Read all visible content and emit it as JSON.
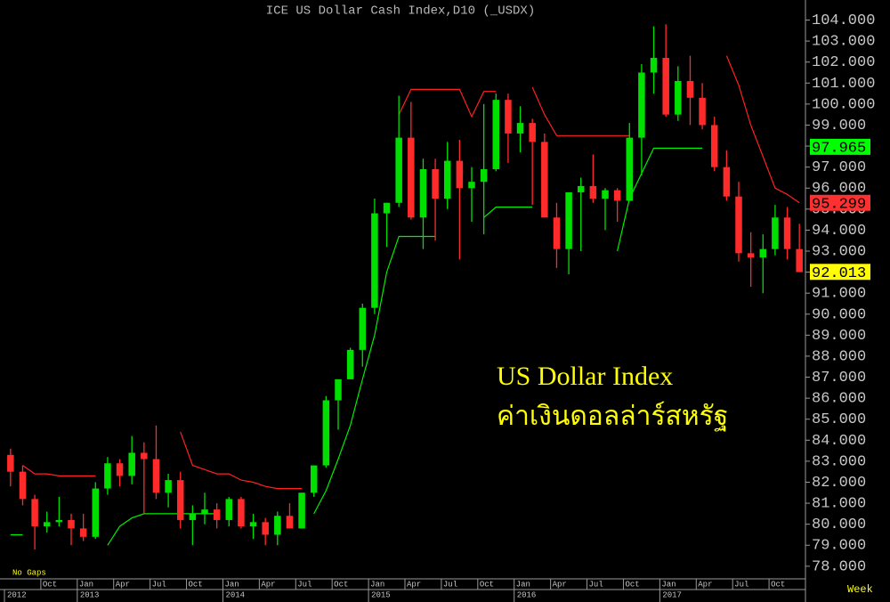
{
  "chart_data": {
    "type": "candlestick",
    "title": "ICE US Dollar Cash Index,D10 (_USDX)",
    "annotations": [
      "US Dollar Index",
      "ค่าเงินดอลล่าร์สหรัฐ"
    ],
    "corner_left": "No Gaps",
    "corner_right": "Week",
    "up_color": "#00e000",
    "down_color": "#ff2a2a",
    "x": [
      "2012-07",
      "2012-08",
      "2012-09",
      "2012-10",
      "2012-11",
      "2012-12",
      "2013-01",
      "2013-02",
      "2013-03",
      "2013-04",
      "2013-05",
      "2013-06",
      "2013-07",
      "2013-08",
      "2013-09",
      "2013-10",
      "2013-11",
      "2013-12",
      "2014-01",
      "2014-02",
      "2014-03",
      "2014-04",
      "2014-05",
      "2014-06",
      "2014-07",
      "2014-08",
      "2014-09",
      "2014-10",
      "2014-11",
      "2014-12",
      "2015-01",
      "2015-02",
      "2015-03",
      "2015-04",
      "2015-05",
      "2015-06",
      "2015-07",
      "2015-08",
      "2015-09",
      "2015-10",
      "2015-11",
      "2015-12",
      "2016-01",
      "2016-02",
      "2016-03",
      "2016-04",
      "2016-05",
      "2016-06",
      "2016-07",
      "2016-08",
      "2016-09",
      "2016-10",
      "2016-11",
      "2016-12",
      "2017-01",
      "2017-02",
      "2017-03",
      "2017-04",
      "2017-05",
      "2017-06",
      "2017-07",
      "2017-08",
      "2017-09",
      "2017-10",
      "2017-11",
      "2017-12"
    ],
    "open": [
      83.3,
      82.5,
      81.2,
      79.9,
      80.1,
      80.2,
      79.8,
      79.4,
      81.7,
      82.9,
      82.3,
      83.4,
      83.1,
      81.5,
      82.1,
      80.2,
      80.5,
      80.7,
      80.2,
      81.2,
      79.9,
      80.1,
      79.5,
      80.4,
      79.8,
      81.5,
      82.8,
      85.9,
      86.9,
      88.3,
      90.3,
      94.8,
      95.3,
      98.4,
      94.6,
      96.9,
      95.5,
      97.3,
      96.0,
      96.3,
      96.9,
      100.2,
      98.6,
      99.1,
      98.2,
      94.6,
      93.1,
      95.8,
      96.1,
      95.5,
      95.9,
      95.4,
      98.4,
      101.5,
      102.2,
      99.5,
      101.1,
      100.3,
      99.0,
      97.0,
      95.6,
      92.9,
      92.7,
      93.1,
      94.6,
      93.1
    ],
    "high": [
      83.6,
      82.8,
      81.4,
      80.6,
      81.3,
      80.5,
      80.5,
      82.0,
      83.2,
      83.1,
      84.2,
      83.9,
      84.7,
      82.4,
      82.5,
      80.9,
      81.5,
      81.0,
      81.3,
      81.3,
      80.5,
      80.3,
      80.6,
      81.0,
      81.5,
      82.8,
      86.1,
      86.8,
      88.4,
      90.5,
      95.5,
      95.3,
      100.4,
      100.1,
      97.4,
      97.4,
      98.2,
      98.3,
      97.0,
      100.0,
      100.5,
      100.5,
      99.9,
      99.3,
      98.6,
      95.3,
      95.8,
      96.5,
      97.6,
      96.0,
      96.0,
      99.1,
      101.9,
      103.7,
      103.8,
      101.8,
      102.3,
      101.0,
      99.4,
      97.8,
      96.3,
      93.9,
      93.8,
      95.2,
      95.1,
      94.3
    ],
    "low": [
      81.8,
      80.9,
      78.8,
      79.6,
      79.9,
      79.0,
      79.2,
      79.3,
      81.4,
      81.8,
      81.9,
      80.5,
      81.2,
      80.8,
      79.8,
      79.0,
      80.0,
      79.8,
      79.9,
      79.8,
      79.3,
      79.0,
      79.0,
      79.8,
      79.8,
      81.3,
      82.7,
      84.5,
      86.9,
      87.5,
      90.0,
      93.2,
      95.1,
      94.5,
      93.1,
      93.5,
      95.0,
      92.6,
      94.4,
      93.8,
      96.8,
      97.2,
      97.7,
      95.2,
      94.6,
      92.2,
      91.9,
      93.0,
      95.3,
      94.0,
      94.4,
      95.4,
      96.6,
      100.5,
      99.4,
      99.2,
      99.0,
      98.8,
      96.8,
      95.4,
      92.5,
      91.3,
      91.0,
      92.8,
      92.6,
      92.0
    ],
    "close": [
      82.5,
      81.2,
      79.9,
      80.1,
      80.2,
      79.8,
      79.4,
      81.7,
      82.9,
      82.3,
      83.4,
      83.1,
      81.5,
      82.1,
      80.2,
      80.5,
      80.7,
      80.2,
      81.2,
      79.9,
      80.1,
      79.5,
      80.4,
      79.8,
      81.5,
      82.8,
      85.9,
      86.9,
      88.3,
      90.3,
      94.8,
      95.3,
      98.4,
      94.6,
      96.9,
      95.5,
      97.3,
      96.0,
      96.3,
      96.9,
      100.2,
      98.6,
      99.1,
      98.2,
      94.6,
      93.1,
      95.8,
      96.1,
      95.5,
      95.9,
      95.4,
      98.4,
      101.5,
      102.2,
      99.5,
      101.1,
      100.3,
      99.0,
      97.0,
      95.6,
      92.9,
      92.7,
      93.1,
      94.6,
      93.1,
      92.0
    ],
    "stops": [
      {
        "color": "#ff2020",
        "values": [
          null,
          82.8,
          82.4,
          82.4,
          82.3,
          82.3,
          82.3,
          82.3,
          null,
          null,
          null,
          null,
          null,
          null,
          84.4,
          82.8,
          82.6,
          82.4,
          82.4,
          82.1,
          82.0,
          81.8,
          81.7,
          81.7,
          81.7,
          null,
          null,
          null,
          null,
          null,
          null,
          null,
          99.5,
          100.7,
          100.7,
          100.7,
          100.7,
          100.7,
          99.4,
          100.6,
          100.6,
          null,
          null,
          100.8,
          99.5,
          98.5,
          98.5,
          98.5,
          98.5,
          98.5,
          98.5,
          98.5,
          null,
          null,
          null,
          null,
          null,
          null,
          null,
          102.3,
          100.9,
          99.0,
          97.5,
          96.0,
          95.7,
          95.3
        ]
      },
      {
        "color": "#00ee00",
        "values": [
          79.5,
          79.5,
          null,
          null,
          null,
          null,
          null,
          null,
          79.0,
          79.9,
          80.3,
          80.5,
          80.5,
          80.5,
          80.5,
          80.5,
          80.5,
          80.5,
          null,
          null,
          null,
          null,
          null,
          null,
          null,
          80.5,
          81.6,
          83.1,
          84.7,
          86.9,
          89.0,
          92.0,
          93.7,
          93.7,
          93.7,
          93.7,
          null,
          null,
          null,
          94.6,
          95.1,
          95.1,
          95.1,
          95.1,
          null,
          null,
          null,
          null,
          null,
          null,
          93.0,
          95.5,
          96.7,
          97.9,
          97.9,
          97.9,
          97.9,
          97.9,
          null,
          null,
          null,
          null,
          null,
          null,
          null,
          null
        ]
      }
    ],
    "price_labels": [
      {
        "value": 97.965,
        "color": "#00ff00"
      },
      {
        "value": 95.299,
        "color": "#ff3030"
      },
      {
        "value": 92.013,
        "color": "#ffff00"
      }
    ],
    "xlim": [
      "2012-07",
      "2018-01"
    ],
    "ylim": [
      77.4,
      104.7
    ],
    "yticks": [
      {
        "value": 78,
        "label": "78.000"
      },
      {
        "value": 79,
        "label": "79.000"
      },
      {
        "value": 80,
        "label": "80.000"
      },
      {
        "value": 81,
        "label": "81.000"
      },
      {
        "value": 82,
        "label": "82.000"
      },
      {
        "value": 83,
        "label": "83.000"
      },
      {
        "value": 84,
        "label": "84.000"
      },
      {
        "value": 85,
        "label": "85.000"
      },
      {
        "value": 86,
        "label": "86.000"
      },
      {
        "value": 87,
        "label": "87.000"
      },
      {
        "value": 88,
        "label": "88.000"
      },
      {
        "value": 89,
        "label": "89.000"
      },
      {
        "value": 90,
        "label": "90.000"
      },
      {
        "value": 91,
        "label": "91.000"
      },
      {
        "value": 92,
        "label": "92.000"
      },
      {
        "value": 93,
        "label": "93.000"
      },
      {
        "value": 94,
        "label": "94.000"
      },
      {
        "value": 95,
        "label": "95.000"
      },
      {
        "value": 96,
        "label": "96.000"
      },
      {
        "value": 97,
        "label": "97.000"
      },
      {
        "value": 98,
        "label": "98.000"
      },
      {
        "value": 99,
        "label": "99.000"
      },
      {
        "value": 100,
        "label": "100.000"
      },
      {
        "value": 101,
        "label": "101.000"
      },
      {
        "value": 102,
        "label": "102.000"
      },
      {
        "value": 103,
        "label": "103.000"
      },
      {
        "value": 104,
        "label": "104.000"
      }
    ],
    "xticks": [
      {
        "value": "2012-10",
        "label": "Oct"
      },
      {
        "value": "2013-01",
        "label": "Jan"
      },
      {
        "value": "2013-04",
        "label": "Apr"
      },
      {
        "value": "2013-07",
        "label": "Jul"
      },
      {
        "value": "2013-10",
        "label": "Oct"
      },
      {
        "value": "2014-01",
        "label": "Jan"
      },
      {
        "value": "2014-04",
        "label": "Apr"
      },
      {
        "value": "2014-07",
        "label": "Jul"
      },
      {
        "value": "2014-10",
        "label": "Oct"
      },
      {
        "value": "2015-01",
        "label": "Jan"
      },
      {
        "value": "2015-04",
        "label": "Apr"
      },
      {
        "value": "2015-07",
        "label": "Jul"
      },
      {
        "value": "2015-10",
        "label": "Oct"
      },
      {
        "value": "2016-01",
        "label": "Jan"
      },
      {
        "value": "2016-04",
        "label": "Apr"
      },
      {
        "value": "2016-07",
        "label": "Jul"
      },
      {
        "value": "2016-10",
        "label": "Oct"
      },
      {
        "value": "2017-01",
        "label": "Jan"
      },
      {
        "value": "2017-04",
        "label": "Apr"
      },
      {
        "value": "2017-07",
        "label": "Jul"
      },
      {
        "value": "2017-10",
        "label": "Oct"
      }
    ],
    "year_ticks": [
      {
        "value": "2012-07",
        "label": "2012"
      },
      {
        "value": "2013-01",
        "label": "2013"
      },
      {
        "value": "2014-01",
        "label": "2014"
      },
      {
        "value": "2015-01",
        "label": "2015"
      },
      {
        "value": "2016-01",
        "label": "2016"
      },
      {
        "value": "2017-01",
        "label": "2017"
      }
    ]
  }
}
